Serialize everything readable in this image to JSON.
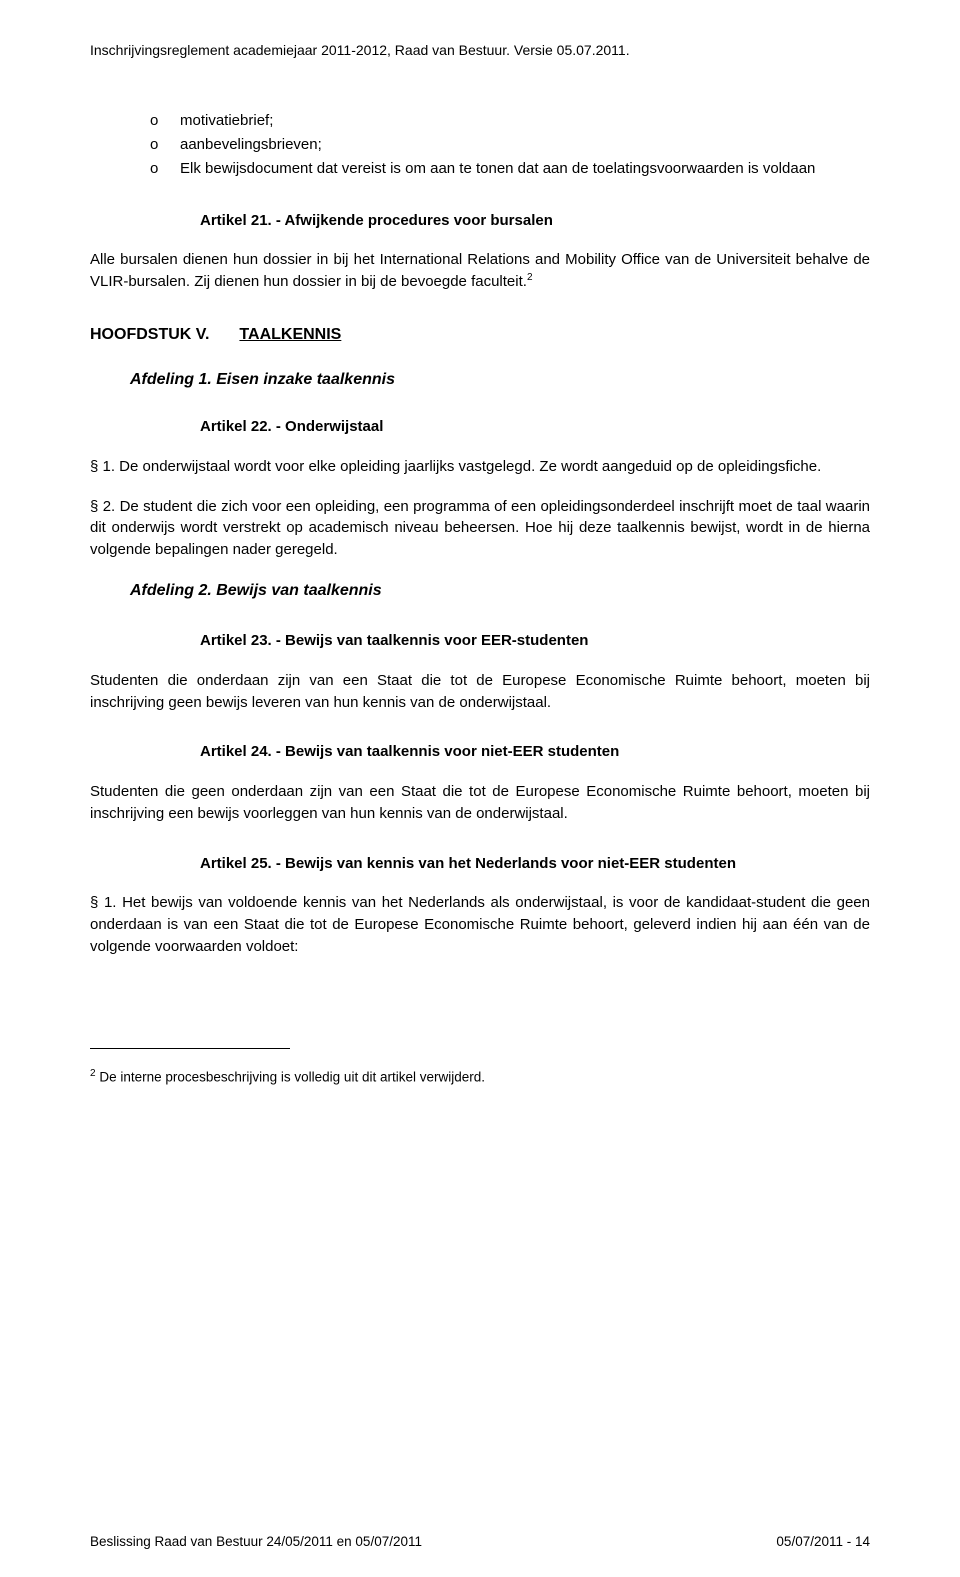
{
  "header": "Inschrijvingsreglement academiejaar 2011-2012, Raad van Bestuur. Versie 05.07.2011.",
  "bullets": {
    "mark": "o",
    "items": [
      "motivatiebrief;",
      "aanbevelingsbrieven;",
      "Elk bewijsdocument dat vereist is om aan te tonen dat aan de toelatingsvoorwaarden is voldaan"
    ]
  },
  "art21": {
    "title": "Artikel 21. - Afwijkende procedures voor bursalen",
    "body": "Alle bursalen dienen hun dossier in bij het International Relations and Mobility Office van de Universiteit behalve de VLIR-bursalen. Zij dienen hun dossier in bij de bevoegde faculteit.",
    "sup": "2"
  },
  "chapter": {
    "label": "HOOFDSTUK V.",
    "title": "TAALKENNIS"
  },
  "afd1": {
    "title": "Afdeling 1. Eisen inzake taalkennis"
  },
  "art22": {
    "title": "Artikel 22. - Onderwijstaal",
    "p1": "§ 1. De onderwijstaal wordt voor elke opleiding jaarlijks vastgelegd. Ze wordt aangeduid op de opleidingsfiche.",
    "p2": "§ 2. De student die zich voor een opleiding, een programma of een opleidingsonderdeel inschrijft moet de taal waarin dit onderwijs wordt verstrekt op academisch niveau beheersen. Hoe hij deze taalkennis bewijst, wordt in de hierna volgende bepalingen nader geregeld."
  },
  "afd2": {
    "title": "Afdeling 2. Bewijs van taalkennis"
  },
  "art23": {
    "title": "Artikel 23. - Bewijs van taalkennis voor EER-studenten",
    "body": "Studenten die onderdaan zijn van een Staat die tot de Europese Economische Ruimte behoort, moeten bij inschrijving geen bewijs leveren van hun kennis van de onderwijstaal."
  },
  "art24": {
    "title": "Artikel 24. - Bewijs van taalkennis voor niet-EER studenten",
    "body": "Studenten die geen onderdaan zijn van een Staat die tot de Europese Economische Ruimte behoort, moeten bij inschrijving een bewijs voorleggen van hun kennis van de onderwijstaal."
  },
  "art25": {
    "title": "Artikel 25. - Bewijs van kennis van het Nederlands voor niet-EER studenten",
    "body": "§ 1. Het bewijs van voldoende kennis van het Nederlands als onderwijstaal, is voor de kandidaat-student die geen onderdaan is van een Staat die tot de Europese Economische Ruimte behoort, geleverd indien hij aan één van de volgende voorwaarden voldoet:"
  },
  "footnote": {
    "sup": "2",
    "text": " De interne procesbeschrijving is volledig uit dit artikel verwijderd."
  },
  "footer": {
    "left": "Beslissing Raad van Bestuur 24/05/2011 en 05/07/2011",
    "right": "05/07/2011 - 14"
  }
}
